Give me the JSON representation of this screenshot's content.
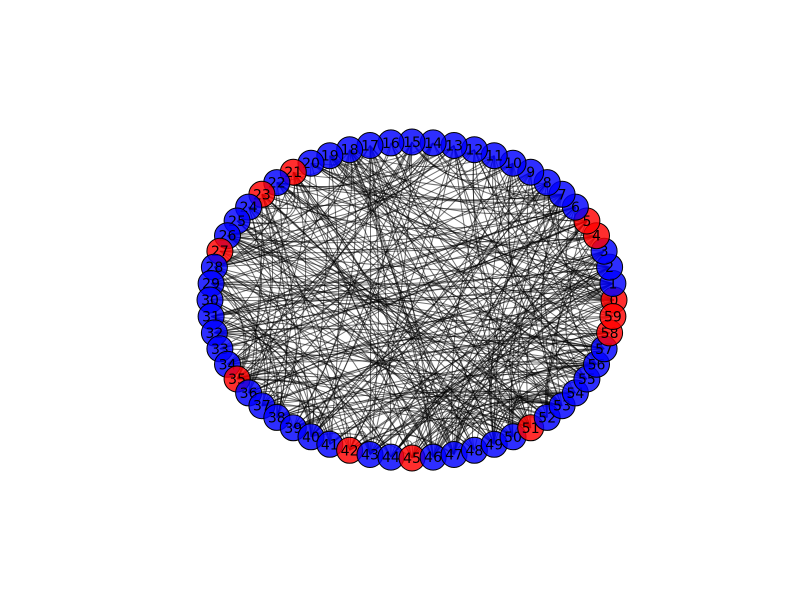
{
  "graph": {
    "type": "circular-network",
    "node_count": 60,
    "colors": {
      "blue": "#0000ff",
      "red": "#ff0000",
      "edge": "#000000"
    },
    "red_nodes": [
      0,
      4,
      5,
      21,
      23,
      27,
      35,
      42,
      45,
      51,
      58,
      59
    ],
    "nodes": [
      {
        "id": 0,
        "label": "0"
      },
      {
        "id": 1,
        "label": "1"
      },
      {
        "id": 2,
        "label": "2"
      },
      {
        "id": 3,
        "label": "3"
      },
      {
        "id": 4,
        "label": "4"
      },
      {
        "id": 5,
        "label": "5"
      },
      {
        "id": 6,
        "label": "6"
      },
      {
        "id": 7,
        "label": "7"
      },
      {
        "id": 8,
        "label": "8"
      },
      {
        "id": 9,
        "label": "9"
      },
      {
        "id": 10,
        "label": "10"
      },
      {
        "id": 11,
        "label": "11"
      },
      {
        "id": 12,
        "label": "12"
      },
      {
        "id": 13,
        "label": "13"
      },
      {
        "id": 14,
        "label": "14"
      },
      {
        "id": 15,
        "label": "15"
      },
      {
        "id": 16,
        "label": "16"
      },
      {
        "id": 17,
        "label": "17"
      },
      {
        "id": 18,
        "label": "18"
      },
      {
        "id": 19,
        "label": "19"
      },
      {
        "id": 20,
        "label": "20"
      },
      {
        "id": 21,
        "label": "21"
      },
      {
        "id": 22,
        "label": "22"
      },
      {
        "id": 23,
        "label": "23"
      },
      {
        "id": 24,
        "label": "24"
      },
      {
        "id": 25,
        "label": "25"
      },
      {
        "id": 26,
        "label": "26"
      },
      {
        "id": 27,
        "label": "27"
      },
      {
        "id": 28,
        "label": "28"
      },
      {
        "id": 29,
        "label": "29"
      },
      {
        "id": 30,
        "label": "30"
      },
      {
        "id": 31,
        "label": "31"
      },
      {
        "id": 32,
        "label": "32"
      },
      {
        "id": 33,
        "label": "33"
      },
      {
        "id": 34,
        "label": "34"
      },
      {
        "id": 35,
        "label": "35"
      },
      {
        "id": 36,
        "label": "36"
      },
      {
        "id": 37,
        "label": "37"
      },
      {
        "id": 38,
        "label": "38"
      },
      {
        "id": 39,
        "label": "39"
      },
      {
        "id": 40,
        "label": "40"
      },
      {
        "id": 41,
        "label": "41"
      },
      {
        "id": 42,
        "label": "42"
      },
      {
        "id": 43,
        "label": "43"
      },
      {
        "id": 44,
        "label": "44"
      },
      {
        "id": 45,
        "label": "45"
      },
      {
        "id": 46,
        "label": "46"
      },
      {
        "id": 47,
        "label": "47"
      },
      {
        "id": 48,
        "label": "48"
      },
      {
        "id": 49,
        "label": "49"
      },
      {
        "id": 50,
        "label": "50"
      },
      {
        "id": 51,
        "label": "51"
      },
      {
        "id": 52,
        "label": "52"
      },
      {
        "id": 53,
        "label": "53"
      },
      {
        "id": 54,
        "label": "54"
      },
      {
        "id": 55,
        "label": "55"
      },
      {
        "id": 56,
        "label": "56"
      },
      {
        "id": 57,
        "label": "57"
      },
      {
        "id": 58,
        "label": "58"
      },
      {
        "id": 59,
        "label": "59"
      }
    ]
  }
}
